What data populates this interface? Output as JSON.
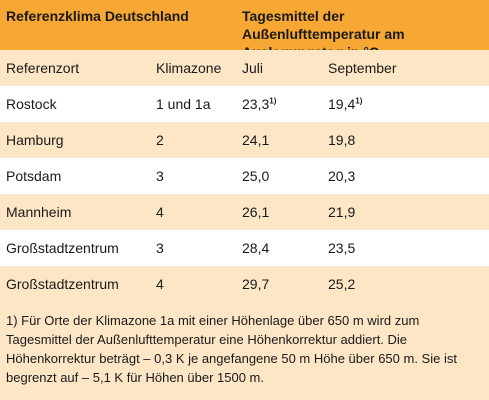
{
  "header": {
    "left": "Referenzklima Deutschland",
    "right": "Tagesmittel der Außenlufttemperatur am Auslegungstag in °C"
  },
  "columns": [
    "Referenzort",
    "Klimazone",
    "Juli",
    "September"
  ],
  "rows": [
    {
      "ort": "Rostock",
      "zone": "1 und 1a",
      "juli": "23,3",
      "juli_fn": "1)",
      "sept": "19,4",
      "sept_fn": "1)"
    },
    {
      "ort": "Hamburg",
      "zone": "2",
      "juli": "24,1",
      "sept": "19,8"
    },
    {
      "ort": "Potsdam",
      "zone": "3",
      "juli": "25,0",
      "sept": "20,3"
    },
    {
      "ort": "Mannheim",
      "zone": "4",
      "juli": "26,1",
      "sept": "21,9"
    },
    {
      "ort": "Großstadtzentrum",
      "zone": "3",
      "juli": "28,4",
      "sept": "23,5"
    },
    {
      "ort": "Großstadtzentrum",
      "zone": "4",
      "juli": "29,7",
      "sept": "25,2"
    }
  ],
  "footnote": "1) Für Orte der Klimazone 1a mit einer Höhenlage über 650 m wird zum Tagesmittel der Außenlufttemperatur eine Höhenkorrektur addiert. Die Höhenkorrektur beträgt – 0,3 K je angefangene 50 m Höhe über 650 m. Sie ist begrenzt auf – 5,1 K für Höhen über 1500 m.",
  "colors": {
    "header": "#f7a733",
    "band": "#fde6c6",
    "text": "#1a1a1a"
  }
}
